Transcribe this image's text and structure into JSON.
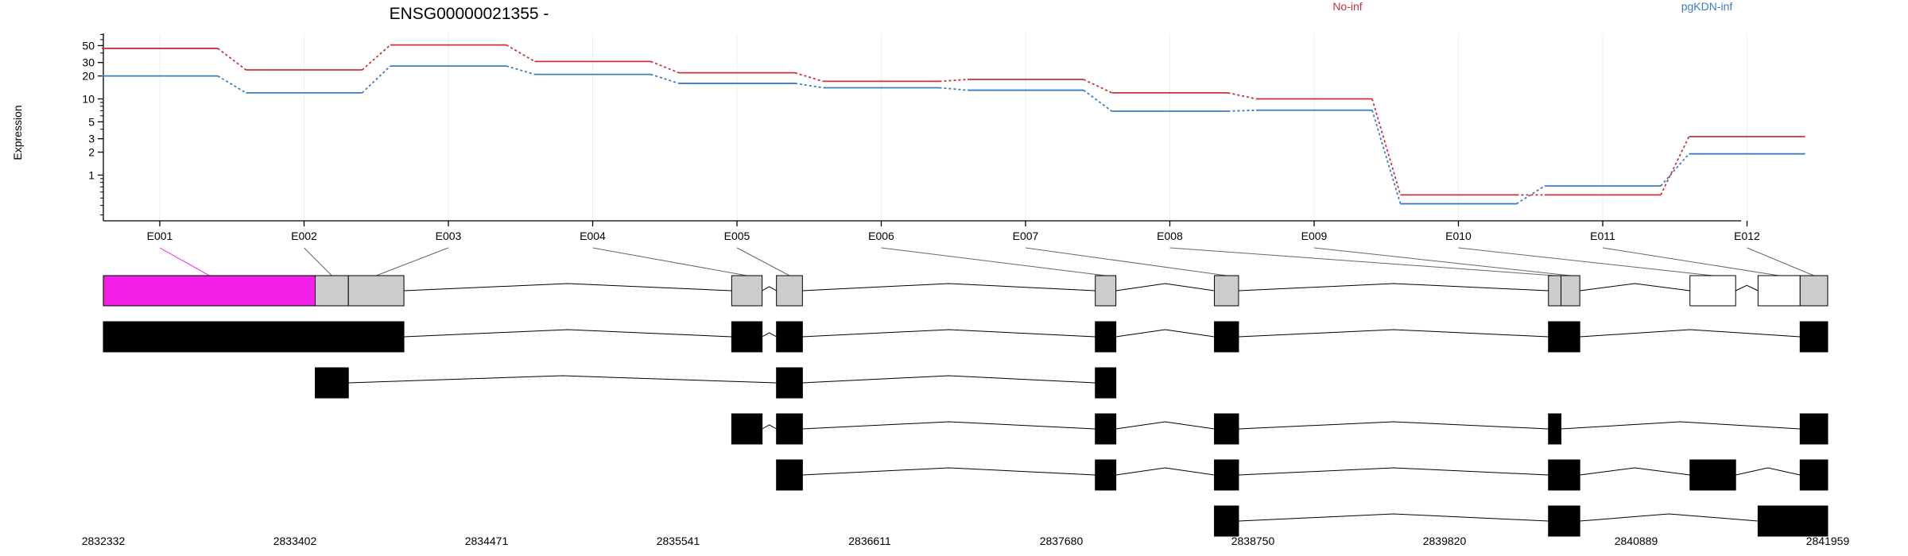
{
  "chart_data": [
    {
      "type": "line",
      "title": "ENSG00000021355 -",
      "ylabel": "Expression",
      "y_scale": "log",
      "y_ticks": [
        1,
        2,
        3,
        5,
        10,
        20,
        30,
        50
      ],
      "categories": [
        "E001",
        "E002",
        "E003",
        "E004",
        "E005",
        "E006",
        "E007",
        "E008",
        "E009",
        "E010",
        "E011",
        "E012"
      ],
      "series": [
        {
          "name": "No-inf",
          "color": "#c8323c",
          "values": [
            46,
            24,
            51,
            31,
            22,
            17,
            18,
            12,
            10,
            0.55,
            0.55,
            3.2
          ]
        },
        {
          "name": "pgKDN-inf",
          "color": "#3a7dbf",
          "values": [
            20,
            12,
            27,
            21,
            16,
            14,
            13,
            6.9,
            7.1,
            0.42,
            0.72,
            1.9
          ]
        }
      ],
      "legend_position": "top-right",
      "grid": true
    },
    {
      "type": "gene-model",
      "genomic_ticks": [
        "2832332",
        "2833402",
        "2834471",
        "2835541",
        "2836611",
        "2837680",
        "2838750",
        "2839820",
        "2840889",
        "2841959"
      ],
      "genomic_range": [
        2832332,
        2841959
      ],
      "highlight_color": "#f01ee6",
      "exon_bins": [
        {
          "id": "E001",
          "start": 2832332,
          "end": 2833515,
          "highlight": true
        },
        {
          "id": "E002",
          "start": 2833515,
          "end": 2833700
        },
        {
          "id": "E003",
          "start": 2833700,
          "end": 2834010
        },
        {
          "id": "E004",
          "start": 2835840,
          "end": 2836010
        },
        {
          "id": "E005",
          "start": 2836090,
          "end": 2836235
        },
        {
          "id": "E006",
          "start": 2837870,
          "end": 2837985
        },
        {
          "id": "E007",
          "start": 2838535,
          "end": 2838670
        },
        {
          "id": "E008",
          "start": 2840400,
          "end": 2840470
        },
        {
          "id": "E009",
          "start": 2840470,
          "end": 2840575
        },
        {
          "id": "E010",
          "start": 2841190,
          "end": 2841445,
          "unexpressed": true
        },
        {
          "id": "E011",
          "start": 2841570,
          "end": 2841805,
          "unexpressed": true
        },
        {
          "id": "E012",
          "start": 2841805,
          "end": 2841959
        }
      ],
      "transcripts": [
        [
          [
            2832332,
            2834010
          ],
          [
            2835840,
            2836010
          ],
          [
            2836090,
            2836235
          ],
          [
            2837870,
            2837985
          ],
          [
            2838535,
            2838670
          ],
          [
            2840400,
            2840575
          ],
          [
            2841805,
            2841959
          ]
        ],
        [
          [
            2833515,
            2833700
          ],
          [
            2836090,
            2836235
          ],
          [
            2837870,
            2837985
          ]
        ],
        [
          [
            2835840,
            2836010
          ],
          [
            2836090,
            2836235
          ],
          [
            2837870,
            2837985
          ],
          [
            2838535,
            2838670
          ],
          [
            2840400,
            2840470
          ],
          [
            2841805,
            2841959
          ]
        ],
        [
          [
            2836090,
            2836235
          ],
          [
            2837870,
            2837985
          ],
          [
            2838535,
            2838670
          ],
          [
            2840400,
            2840575
          ],
          [
            2841190,
            2841445
          ],
          [
            2841805,
            2841959
          ]
        ],
        [
          [
            2838535,
            2838670
          ],
          [
            2840400,
            2840575
          ],
          [
            2841570,
            2841959
          ]
        ]
      ]
    }
  ]
}
